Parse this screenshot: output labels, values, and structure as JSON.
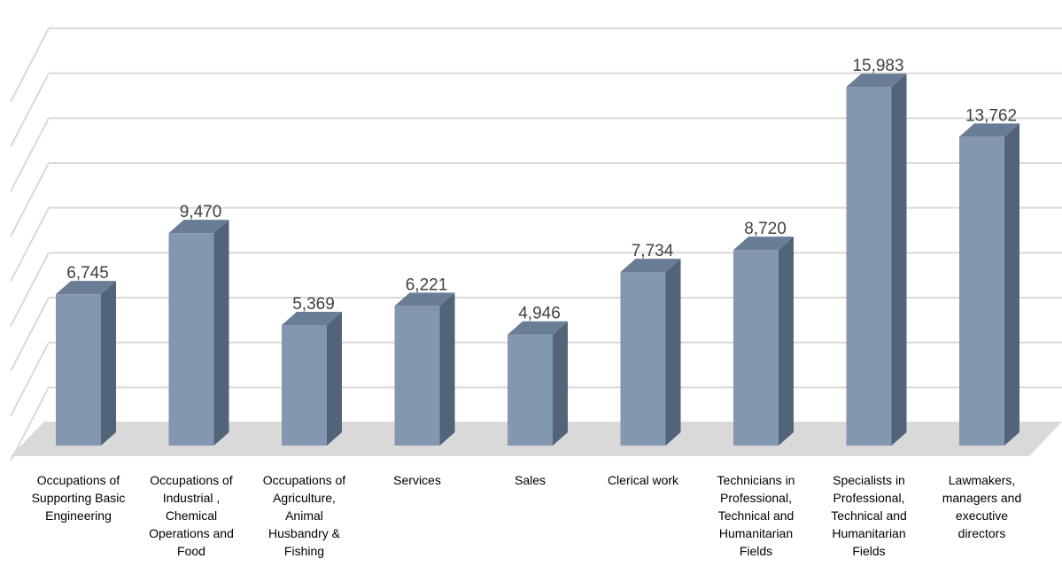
{
  "chart_data": {
    "type": "bar",
    "categories": [
      "Occupations of\nSupporting Basic\nEngineering",
      "Occupations of\nIndustrial ,\nChemical\nOperations and\nFood",
      "Occupations of\nAgriculture,\nAnimal\nHusbandry &\nFishing",
      "Services",
      "Sales",
      "Clerical work",
      "Technicians in\nProfessional,\nTechnical and\nHumanitarian\nFields",
      "Specialists in\nProfessional,\nTechnical and\nHumanitarian\nFields",
      "Lawmakers,\nmanagers and\nexecutive\ndirectors"
    ],
    "values": [
      6745,
      9470,
      5369,
      6221,
      4946,
      7734,
      8720,
      15983,
      13762
    ],
    "value_labels": [
      "6,745",
      "9,470",
      "5,369",
      "6,221",
      "4,946",
      "7,734",
      "8,720",
      "15,983",
      "13,762"
    ],
    "ylim": [
      0,
      18000
    ],
    "grid": true,
    "style": "3d-column",
    "colors": {
      "bar_front": "#8497b0",
      "bar_side": "#546478",
      "bar_top": "#6a7d97",
      "floor": "#d9d9d9",
      "grid": "#d9d9d9",
      "label": "#404040"
    }
  }
}
